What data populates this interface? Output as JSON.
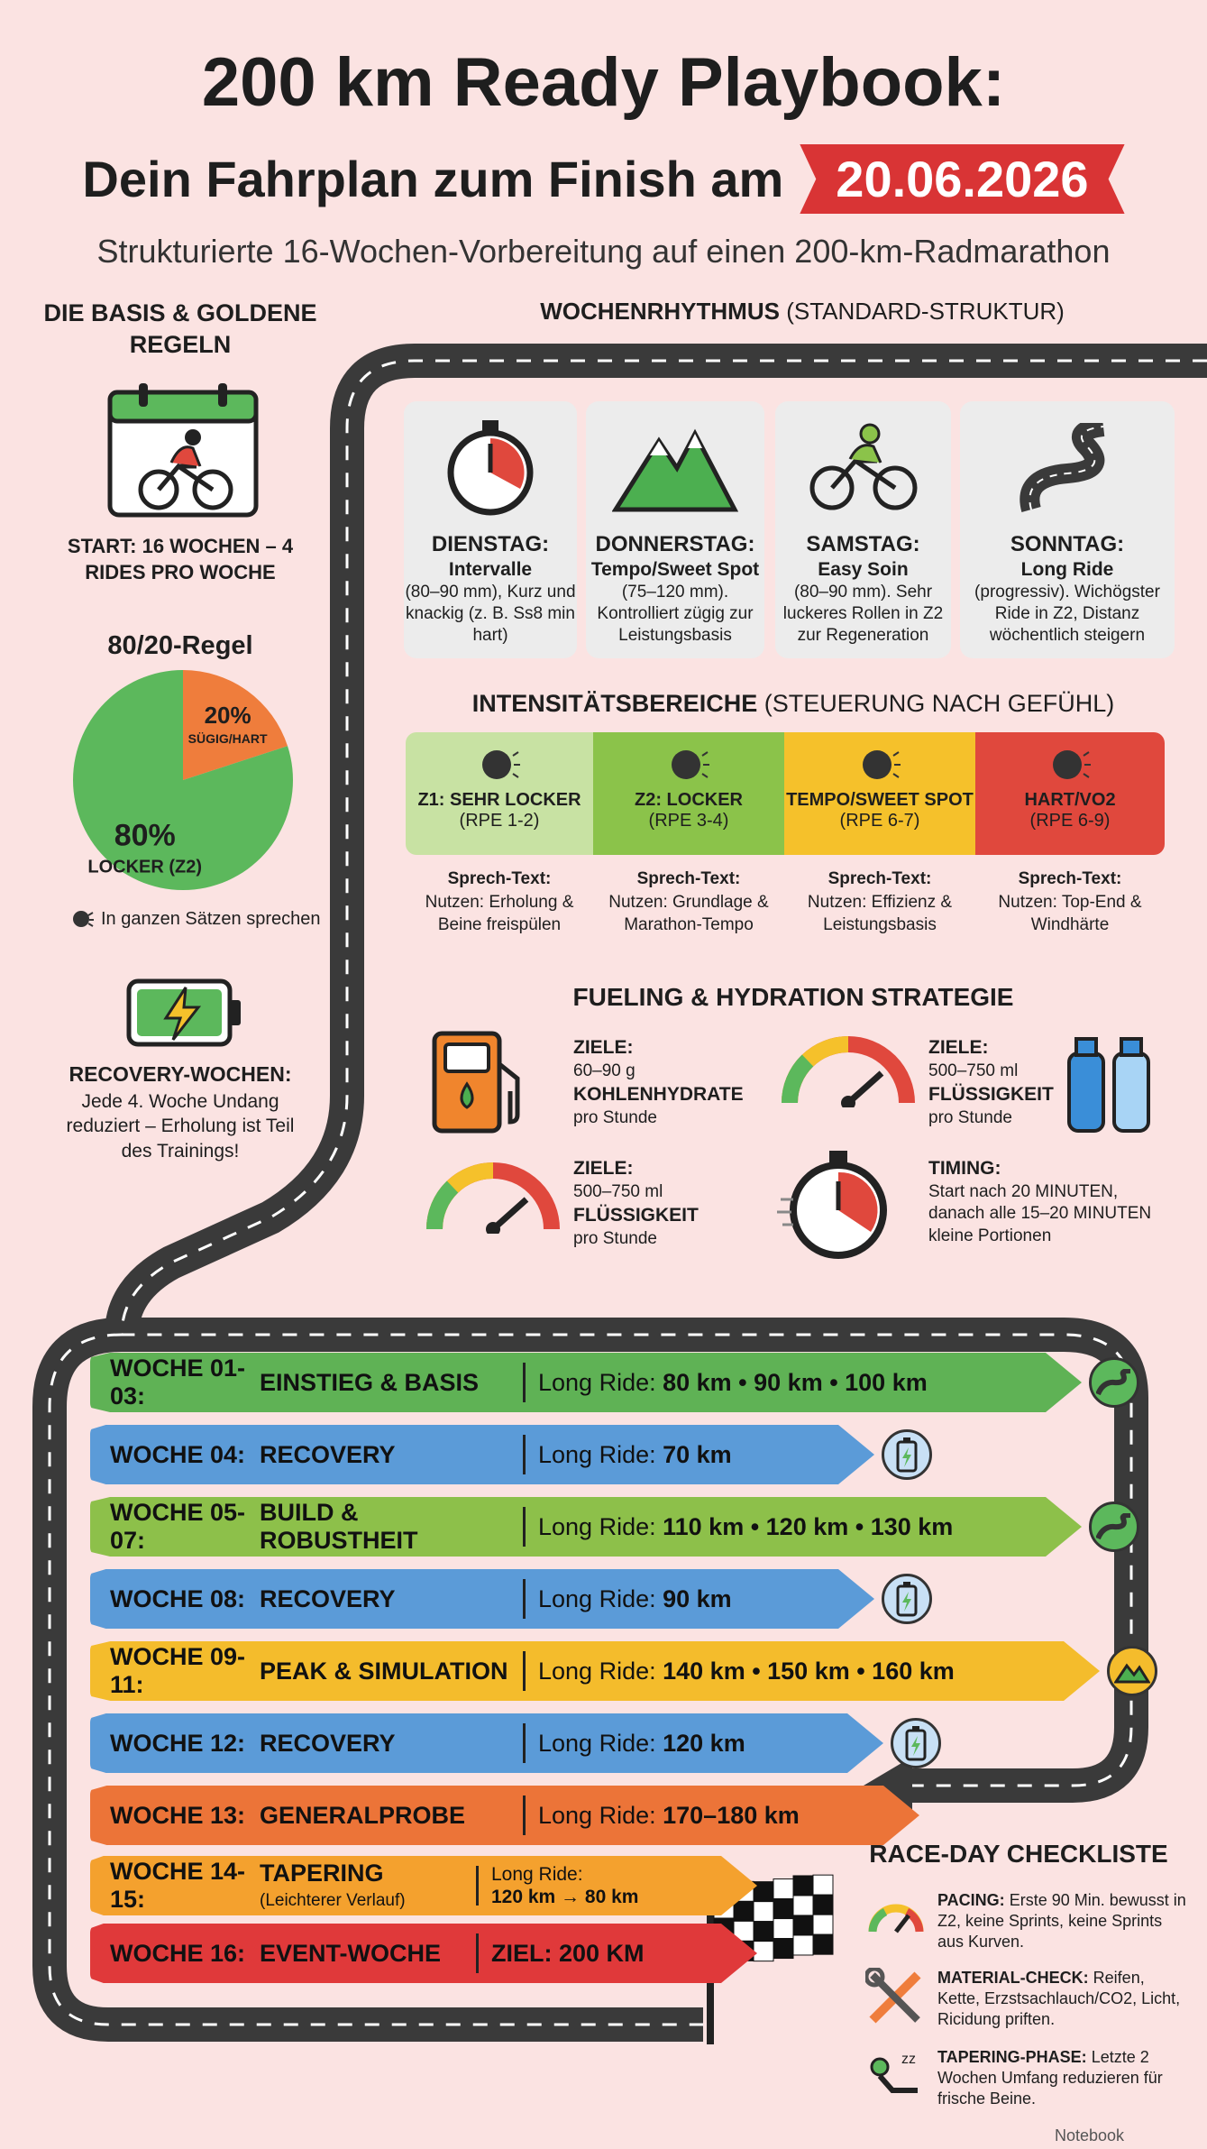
{
  "title": "200 km Ready Playbook:",
  "subtitle_prefix": "Dein Fahrplan zum Finish am",
  "event_date": "20.06.2026",
  "tagline": "Strukturierte 16-Wochen-Vorbereitung auf einen 200-km-Radmarathon",
  "basis": {
    "heading": "DIE BASIS & GOLDENE REGELN",
    "start": "START: 16 WOCHEN – 4 RIDES PRO WOCHE",
    "rule_title": "80/20-Regel",
    "pie": {
      "slices": [
        {
          "value": 80,
          "label": "80%",
          "sublabel": "LOCKER (Z2)",
          "color": "#5cb85c"
        },
        {
          "value": 20,
          "label": "20%",
          "sublabel": "SÜGIG/HART",
          "color": "#ef7d3c"
        }
      ]
    },
    "speech_note": "In ganzen Sätzen sprechen",
    "recovery": "RECOVERY-WOCHEN:",
    "recovery_text": "Jede 4. Woche Undang reduziert – Erholung ist Teil des Trainings!"
  },
  "rhythm": {
    "heading_bold": "WOCHENRHYTHMUS",
    "heading_rest": "(STANDARD-STRUKTUR)",
    "days": [
      {
        "day": "DIENSTAG:",
        "type": "Intervalle",
        "desc": "(80–90 mm), Kurz und knackig (z. B. Ss8 min hart)",
        "icon": "stopwatch-icon"
      },
      {
        "day": "DONNERSTAG:",
        "type": "Tempo/Sweet Spot",
        "desc": "(75–120 mm). Kontrolliert zügig zur Leistungsbasis",
        "icon": "mountain-icon"
      },
      {
        "day": "SAMSTAG:",
        "type": "Easy Soin",
        "desc": "(80–90 mm). Sehr luckeres Rollen in Z2 zur Regeneration",
        "icon": "cyclist-icon"
      },
      {
        "day": "SONNTAG:",
        "type": "Long Ride",
        "desc": "(progressiv). Wichögster Ride in Z2, Distanz wöchentlich steigern",
        "icon": "winding-road-icon"
      }
    ]
  },
  "zones": {
    "heading_bold": "INTENSITÄTSBEREICHE",
    "heading_rest": "(STEUERUNG NACH GEFÜHL)",
    "items": [
      {
        "name": "Z1: SEHR LOCKER",
        "rpe": "(RPE 1-2)",
        "color": "#c8e2a3",
        "speech": "Sprech-Text:",
        "use": "Nutzen: Erholung & Beine freispülen"
      },
      {
        "name": "Z2: LOCKER",
        "rpe": "(RPE 3-4)",
        "color": "#8bc34a",
        "speech": "Sprech-Text:",
        "use": "Nutzen: Grundlage & Marathon-Tempo"
      },
      {
        "name": "TEMPO/SWEET SPOT",
        "rpe": "(RPE 6-7)",
        "color": "#f5c12b",
        "speech": "Sprech-Text:",
        "use": "Nutzen: Effizienz & Leistungsbasis"
      },
      {
        "name": "HART/VO2",
        "rpe": "(RPE 6-9)",
        "color": "#e0483d",
        "speech": "Sprech-Text:",
        "use": "Nutzen: Top-End & Windhärte"
      }
    ]
  },
  "fueling": {
    "heading": "FUELING & HYDRATION STRATEGIE",
    "blocks": [
      {
        "label": "ZIELE:",
        "l1": "60–90 g",
        "l2": "KOHLENHYDRATE",
        "l3": "pro Stunde"
      },
      {
        "label": "ZIELE:",
        "l1": "500–750 ml",
        "l2": "FLÜSSIGKEIT",
        "l3": "pro Stunde"
      },
      {
        "label": "ZIELE:",
        "l1": "500–750 ml",
        "l2": "FLÜSSIGKEIT",
        "l3": "pro Stunde"
      },
      {
        "label": "TIMING:",
        "l1": "Start nach 20 MINUTEN,",
        "l2": "danach alle 15–20 MINUTEN",
        "l3": "kleine Portionen"
      }
    ]
  },
  "weeks": [
    {
      "week": "WOCHE 01-03:",
      "phase": "EINSTIEG & BASIS",
      "ride": "Long Ride:",
      "dist": "80 km • 90 km • 100 km",
      "color": "#5fb255",
      "icon": "road-icon"
    },
    {
      "week": "WOCHE 04:",
      "phase": "RECOVERY",
      "ride": "Long Ride:",
      "dist": "70 km",
      "color": "#5b9bd8",
      "icon": "battery-icon"
    },
    {
      "week": "WOCHE 05-07:",
      "phase": "BUILD & ROBUSTHEIT",
      "ride": "Long Ride:",
      "dist": "110 km • 120 km • 130 km",
      "color": "#8dc04a",
      "icon": "road-icon"
    },
    {
      "week": "WOCHE 08:",
      "phase": "RECOVERY",
      "ride": "Long Ride:",
      "dist": "90 km",
      "color": "#5b9bd8",
      "icon": "battery-icon"
    },
    {
      "week": "WOCHE 09-11:",
      "phase": "PEAK & SIMULATION",
      "ride": "Long Ride:",
      "dist": "140 km • 150 km • 160 km",
      "color": "#f4bc2c",
      "icon": "mountain-icon"
    },
    {
      "week": "WOCHE 12:",
      "phase": "RECOVERY",
      "ride": "Long Ride:",
      "dist": "120 km",
      "color": "#5b9bd8",
      "icon": "battery-icon"
    },
    {
      "week": "WOCHE 13:",
      "phase": "GENERALPROBE",
      "ride": "Long Ride:",
      "dist": "170–180 km",
      "color": "#ec7438",
      "icon": ""
    },
    {
      "week": "WOCHE 14-15:",
      "phase": "TAPERING",
      "phase_sub": "(Leichterer Verlauf)",
      "ride": "Long Ride:",
      "dist": "120 km → 80 km",
      "color": "#f4a12e",
      "icon": ""
    },
    {
      "week": "WOCHE 16:",
      "phase": "EVENT-WOCHE",
      "ride": "",
      "dist": "ZIEL: 200 KM",
      "color": "#e0393a",
      "icon": ""
    }
  ],
  "checklist": {
    "heading": "RACE-DAY CHECKLISTE",
    "items": [
      {
        "label": "PACING:",
        "text": "Erste 90 Min. bewusst in Z2, keine Sprints, keine Sprints aus Kurven."
      },
      {
        "label": "MATERIAL-CHECK:",
        "text": "Reifen, Kette, Erzstsachlauch/CO2, Licht, Ricidung priften."
      },
      {
        "label": "TAPERING-PHASE:",
        "text": "Letzte 2 Wochen Umfang reduzieren für frische Beine."
      }
    ]
  },
  "brand": "Notebook"
}
